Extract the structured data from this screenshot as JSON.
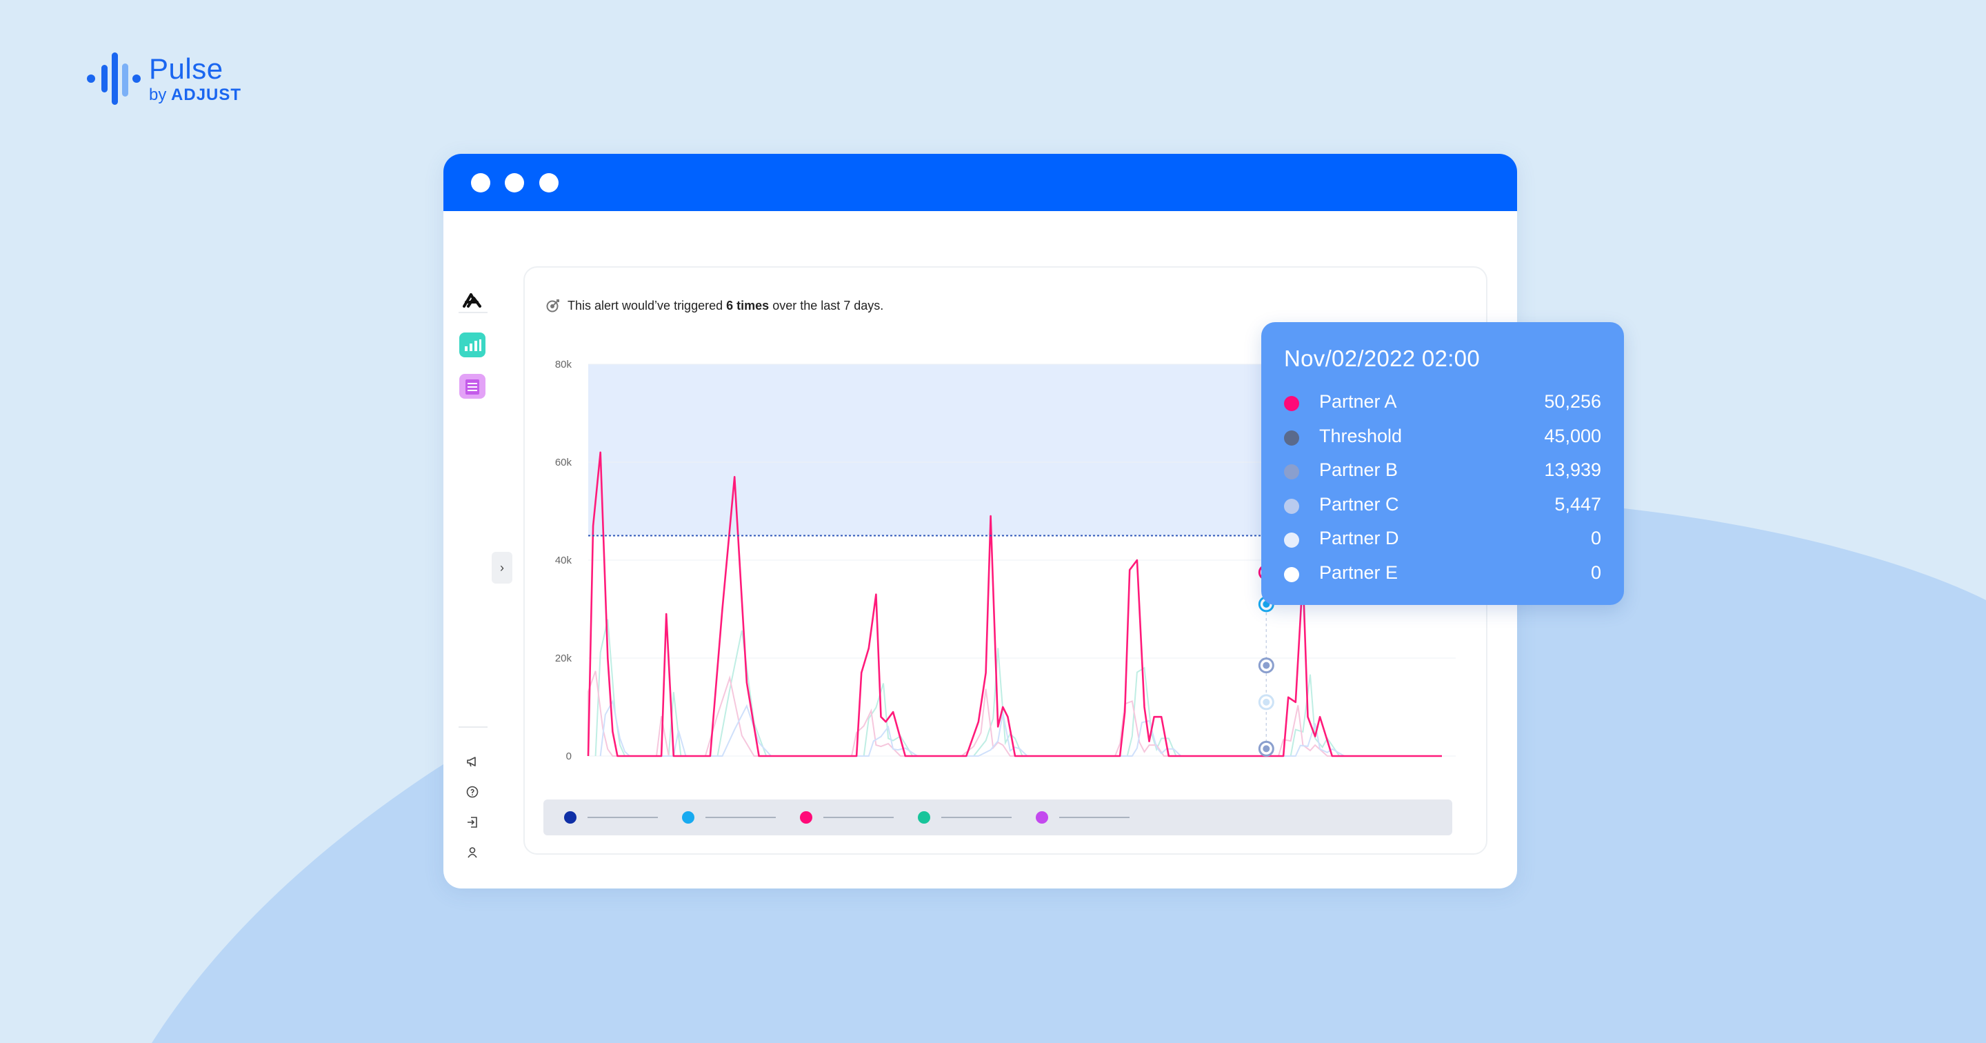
{
  "brand": {
    "name": "Pulse",
    "by_prefix": "by",
    "by_company": "ADJUST"
  },
  "alert": {
    "prefix": "This alert would’ve triggered",
    "count_text": "6 times",
    "suffix": "over the last 7 days."
  },
  "tooltip": {
    "title": "Nov/02/2022 02:00",
    "rows": [
      {
        "name": "Partner A",
        "value": "50,256",
        "color": "#ff0a78"
      },
      {
        "name": "Threshold",
        "value": "45,000",
        "color": "#5a6a8c"
      },
      {
        "name": "Partner B",
        "value": "13,939",
        "color": "#8a9fce"
      },
      {
        "name": "Partner C",
        "value": "5,447",
        "color": "#b9cbef"
      },
      {
        "name": "Partner D",
        "value": "0",
        "color": "#e6eefc"
      },
      {
        "name": "Partner E",
        "value": "0",
        "color": "#ffffff"
      }
    ]
  },
  "legend": {
    "dot_colors": [
      "#0f2fa6",
      "#18aaf0",
      "#ff0a78",
      "#17c49a",
      "#c349ee"
    ]
  },
  "colors": {
    "titlebar": "#0062ff",
    "threshold_band": "#e3edfd",
    "primary_series": "#ff1a7a"
  },
  "chart_data": {
    "type": "line",
    "yticks": [
      "0",
      "20k",
      "40k",
      "60k",
      "80k"
    ],
    "ylim": [
      0,
      80000
    ],
    "threshold": 45000,
    "threshold_band": [
      45000,
      80000
    ],
    "grid": true,
    "series": [
      {
        "x": [
          0,
          2,
          5,
          8,
          10,
          12,
          15,
          20,
          25,
          30,
          32,
          35,
          40,
          45,
          50,
          55,
          60,
          65,
          70,
          75,
          80,
          82,
          85,
          88,
          90,
          92,
          95,
          100,
          105,
          110,
          112,
          115,
          118,
          120,
          122,
          125,
          130,
          135,
          140,
          145,
          150,
          155,
          160,
          163,
          165,
          168,
          170,
          172,
          175,
          180,
          185,
          190,
          195,
          200,
          205,
          210,
          215,
          218,
          220,
          222,
          225,
          228,
          230,
          232,
          235,
          238,
          240,
          242,
          245,
          250,
          255,
          260,
          265,
          270,
          275,
          280,
          285,
          287,
          290,
          293,
          295,
          298,
          300,
          305,
          310,
          315,
          320,
          325,
          330,
          335,
          340,
          342,
          345,
          348,
          350
        ],
        "y": [
          0,
          47000,
          62000,
          20000,
          5000,
          0,
          0,
          0,
          0,
          0,
          29000,
          0,
          0,
          0,
          0,
          30000,
          57000,
          15000,
          0,
          0,
          0,
          0,
          0,
          0,
          0,
          0,
          0,
          0,
          0,
          0,
          17000,
          22000,
          33000,
          8000,
          7000,
          9000,
          0,
          0,
          0,
          0,
          0,
          0,
          7000,
          17000,
          49000,
          6000,
          10000,
          8000,
          0,
          0,
          0,
          0,
          0,
          0,
          0,
          0,
          0,
          0,
          9000,
          38000,
          40000,
          10000,
          3000,
          8000,
          8000,
          0,
          0,
          0,
          0,
          0,
          0,
          0,
          0,
          0,
          0,
          0,
          0,
          12000,
          11000,
          37000,
          8000,
          4000,
          8000,
          0,
          0,
          0,
          0,
          0,
          0,
          0,
          0,
          0,
          0,
          0,
          0
        ]
      }
    ]
  }
}
